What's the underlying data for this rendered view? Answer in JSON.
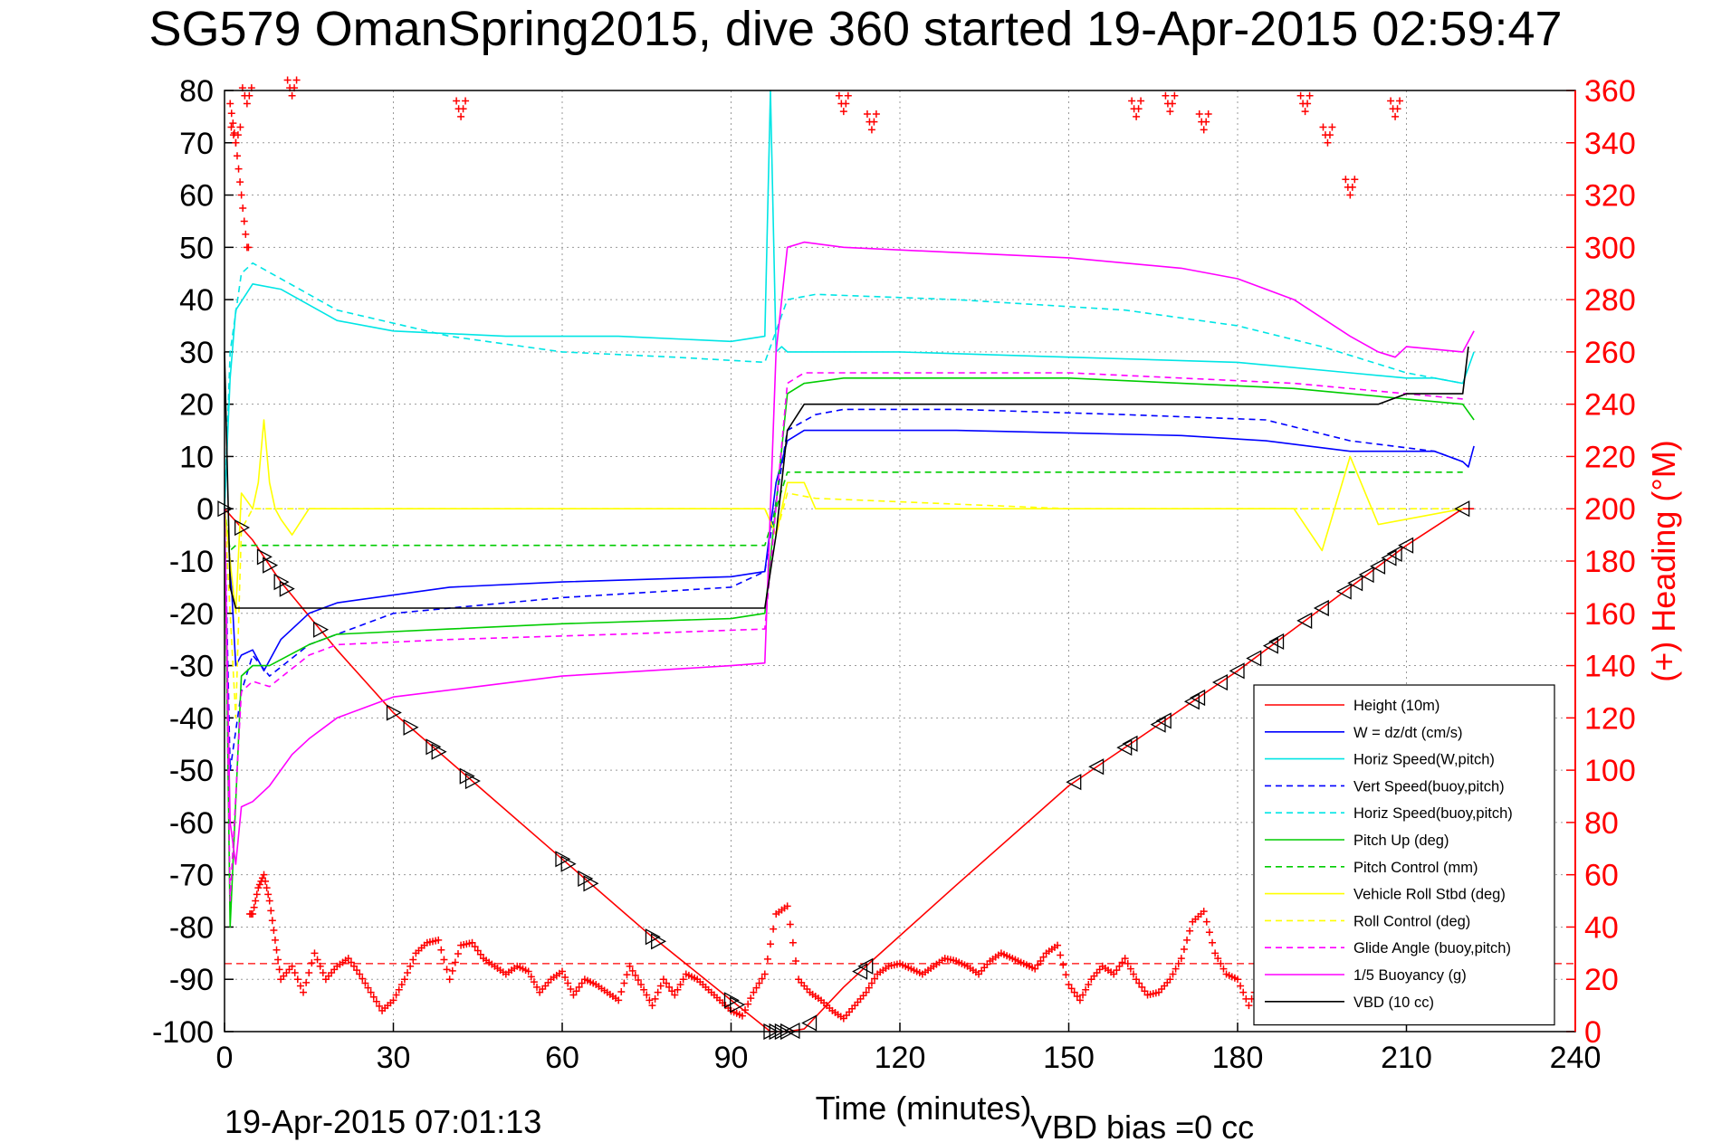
{
  "chart_data": {
    "type": "line",
    "title": "SG579 OmanSpring2015, dive 360 started 19-Apr-2015 02:59:47",
    "xlabel": "Time (minutes)",
    "ylabel_right": "(+) Heading (°M)",
    "xlim": [
      0,
      240
    ],
    "ylim": [
      -100,
      80
    ],
    "ylim_right": [
      0,
      360
    ],
    "x_ticks": [
      "0",
      "30",
      "60",
      "90",
      "120",
      "150",
      "180",
      "210",
      "240"
    ],
    "y_ticks": [
      "-100",
      "-90",
      "-80",
      "-70",
      "-60",
      "-50",
      "-40",
      "-30",
      "-20",
      "-10",
      "0",
      "10",
      "20",
      "30",
      "40",
      "50",
      "60",
      "70",
      "80"
    ],
    "y_ticks_right": [
      "0",
      "20",
      "40",
      "60",
      "80",
      "100",
      "120",
      "140",
      "160",
      "180",
      "200",
      "220",
      "240",
      "260",
      "280",
      "300",
      "320",
      "340",
      "360"
    ],
    "grid": true,
    "legend_position": "bottom-right",
    "footer_left": "19-Apr-2015 07:01:13",
    "footer_right": "VBD bias =0 cc",
    "series": [
      {
        "name": "Height (10m)",
        "color": "#ff0000",
        "style": "solid",
        "x": [
          0,
          5,
          10,
          20,
          30,
          45,
          60,
          75,
          90,
          97,
          98,
          100,
          103,
          110,
          115,
          130,
          150,
          165,
          180,
          195,
          210,
          220,
          222
        ],
        "y": [
          0,
          -6,
          -14,
          -27,
          -39,
          -53,
          -67,
          -81,
          -94,
          -100,
          -100,
          -100,
          -99.5,
          -91.5,
          -86.5,
          -72,
          -53,
          -42,
          -31,
          -19,
          -7,
          0,
          0
        ]
      },
      {
        "name": "W = dz/dt (cm/s)",
        "color": "#0000ff",
        "style": "solid",
        "x": [
          0,
          1,
          2,
          3,
          5,
          7,
          10,
          15,
          20,
          40,
          60,
          90,
          96,
          98,
          100,
          103,
          110,
          130,
          150,
          170,
          185,
          200,
          215,
          220,
          221,
          222
        ],
        "y": [
          0,
          -10,
          -30,
          -28,
          -27,
          -31,
          -25,
          -20,
          -18,
          -15,
          -14,
          -13,
          -12,
          5,
          13,
          15,
          15,
          15,
          14.5,
          14,
          13,
          11,
          11,
          9,
          8,
          12
        ]
      },
      {
        "name": "Horiz Speed(W,pitch)",
        "color": "#00e5e5",
        "style": "solid",
        "x": [
          0,
          1,
          2,
          5,
          10,
          20,
          30,
          50,
          70,
          90,
          96,
          97,
          98,
          99,
          100,
          105,
          120,
          150,
          180,
          200,
          210,
          215,
          220,
          222
        ],
        "y": [
          0,
          25,
          38,
          43,
          42,
          36,
          34,
          33,
          33,
          32,
          33,
          80,
          30,
          31,
          30,
          30,
          30,
          29,
          28,
          26,
          25,
          25,
          24,
          30
        ]
      },
      {
        "name": "Vert Speed(buoy,pitch)",
        "color": "#0000ff",
        "style": "dashed",
        "x": [
          0,
          1,
          3,
          5,
          8,
          15,
          30,
          60,
          90,
          96,
          100,
          105,
          110,
          130,
          160,
          185,
          200,
          215,
          220
        ],
        "y": [
          0,
          -50,
          -35,
          -28,
          -32,
          -26,
          -20,
          -17,
          -15,
          -12,
          15,
          18,
          19,
          19,
          18,
          17,
          13,
          11,
          9
        ]
      },
      {
        "name": "Horiz Speed(buoy,pitch)",
        "color": "#00e5e5",
        "style": "dashed",
        "x": [
          0,
          1,
          3,
          5,
          10,
          20,
          40,
          60,
          80,
          96,
          100,
          105,
          130,
          160,
          180,
          195,
          210,
          220
        ],
        "y": [
          0,
          30,
          45,
          47,
          44,
          38,
          33,
          30,
          29,
          28,
          40,
          41,
          40,
          38,
          35,
          31,
          26,
          24
        ]
      },
      {
        "name": "Pitch Up (deg)",
        "color": "#00cc00",
        "style": "solid",
        "x": [
          0,
          1,
          3,
          5,
          8,
          15,
          20,
          40,
          60,
          90,
          96,
          100,
          103,
          110,
          150,
          190,
          210,
          220,
          222
        ],
        "y": [
          0,
          -80,
          -32,
          -30,
          -30,
          -26,
          -24,
          -23,
          -22,
          -21,
          -20,
          22,
          24,
          25,
          25,
          23,
          21,
          20,
          17
        ]
      },
      {
        "name": "Pitch Control (mm)",
        "color": "#00cc00",
        "style": "dashed",
        "x": [
          0,
          1,
          2,
          10,
          40,
          70,
          96,
          98,
          100,
          110,
          150,
          200,
          220
        ],
        "y": [
          0,
          -8,
          -7,
          -7,
          -7,
          -7,
          -7,
          0,
          7,
          7,
          7,
          7,
          7
        ]
      },
      {
        "name": "Vehicle Roll Stbd (deg)",
        "color": "#ffff00",
        "style": "solid",
        "x": [
          0,
          2,
          3,
          5,
          6,
          7,
          8,
          9,
          10,
          12,
          15,
          20,
          30,
          40,
          60,
          80,
          96,
          98,
          100,
          103,
          105,
          120,
          150,
          170,
          190,
          195,
          200,
          205,
          220
        ],
        "y": [
          0,
          -20,
          3,
          0,
          5,
          17,
          5,
          0,
          -2,
          -5,
          0,
          0,
          0,
          0,
          0,
          0,
          0,
          -5,
          5,
          5,
          0,
          0,
          0,
          0,
          0,
          -8,
          10,
          -3,
          0
        ]
      },
      {
        "name": "Roll Control (deg)",
        "color": "#ffff00",
        "style": "dashed",
        "x": [
          0,
          2,
          3,
          5,
          40,
          96,
          98,
          100,
          105,
          150,
          200,
          220
        ],
        "y": [
          0,
          -40,
          -4,
          0,
          0,
          0,
          -5,
          3,
          2,
          0,
          0,
          0
        ]
      },
      {
        "name": "Glide Angle (buoy,pitch)",
        "color": "#ff00ff",
        "style": "dashed",
        "x": [
          0,
          1,
          3,
          5,
          8,
          15,
          20,
          40,
          70,
          96,
          100,
          103,
          110,
          150,
          190,
          210,
          220
        ],
        "y": [
          0,
          -75,
          -35,
          -33,
          -34,
          -28,
          -26,
          -25,
          -24,
          -23,
          24,
          26,
          26,
          26,
          24,
          22,
          21
        ]
      },
      {
        "name": "1/5 Buoyancy (g)",
        "color": "#ff00ff",
        "style": "solid",
        "x": [
          0,
          1,
          2,
          3,
          5,
          8,
          12,
          15,
          20,
          25,
          30,
          45,
          60,
          75,
          90,
          96,
          98,
          100,
          103,
          110,
          130,
          150,
          170,
          180,
          190,
          200,
          205,
          208,
          210,
          220,
          222
        ],
        "y": [
          0,
          -60,
          -68,
          -57,
          -56,
          -53,
          -47,
          -44,
          -40,
          -38,
          -36,
          -34,
          -32,
          -31,
          -30,
          -29.5,
          30,
          50,
          51,
          50,
          49,
          48,
          46,
          44,
          40,
          33,
          30,
          29,
          31,
          30,
          34
        ]
      },
      {
        "name": "VBD (10 cc)",
        "color": "#000000",
        "style": "solid",
        "x": [
          0,
          1,
          2,
          50,
          96,
          98,
          100,
          103,
          130,
          205,
          210,
          220,
          221
        ],
        "y": [
          30,
          -15,
          -19,
          -19,
          -19,
          -5,
          15,
          20,
          20,
          20,
          22,
          22,
          31
        ]
      }
    ],
    "heading": {
      "name": "Heading",
      "color": "#ff0000",
      "marker": "+",
      "axis": "right",
      "reference_line": 26,
      "x": [
        1,
        2,
        3,
        4,
        5,
        6,
        7,
        8,
        9,
        10,
        12,
        14,
        16,
        18,
        20,
        22,
        24,
        26,
        28,
        30,
        32,
        34,
        36,
        38,
        40,
        42,
        44,
        46,
        48,
        50,
        52,
        54,
        56,
        58,
        60,
        62,
        64,
        66,
        68,
        70,
        72,
        74,
        76,
        78,
        80,
        82,
        84,
        86,
        88,
        90,
        92,
        94,
        96,
        98,
        100,
        102,
        104,
        106,
        108,
        110,
        112,
        114,
        116,
        118,
        120,
        122,
        124,
        126,
        128,
        130,
        132,
        134,
        136,
        138,
        140,
        142,
        144,
        146,
        148,
        150,
        152,
        154,
        156,
        158,
        160,
        162,
        164,
        166,
        168,
        170,
        172,
        174,
        176,
        178,
        180,
        182,
        184,
        186,
        188,
        190,
        192,
        194,
        196,
        198,
        200,
        202,
        204,
        206,
        208,
        210,
        212,
        214,
        216,
        218,
        220
      ],
      "y": [
        355,
        340,
        320,
        300,
        45,
        55,
        60,
        50,
        35,
        20,
        25,
        15,
        30,
        20,
        25,
        28,
        22,
        15,
        8,
        12,
        20,
        30,
        34,
        35,
        20,
        33,
        34,
        28,
        25,
        22,
        25,
        23,
        15,
        20,
        23,
        14,
        20,
        18,
        15,
        12,
        25,
        18,
        10,
        20,
        14,
        22,
        20,
        16,
        12,
        8,
        6,
        15,
        22,
        45,
        48,
        20,
        15,
        12,
        8,
        5,
        10,
        15,
        22,
        25,
        26,
        24,
        22,
        25,
        28,
        27,
        25,
        22,
        27,
        30,
        28,
        26,
        24,
        30,
        33,
        18,
        12,
        20,
        25,
        22,
        28,
        20,
        14,
        15,
        20,
        28,
        42,
        46,
        30,
        22,
        20,
        10,
        20,
        22,
        15,
        25,
        20,
        22,
        15,
        22,
        20,
        26,
        22,
        30,
        32,
        25,
        28,
        15,
        22,
        22,
        20
      ]
    },
    "heading_top_clusters": [
      [
        2,
        340
      ],
      [
        4,
        355
      ],
      [
        12,
        358
      ],
      [
        42,
        350
      ],
      [
        110,
        352
      ],
      [
        115,
        345
      ],
      [
        162,
        350
      ],
      [
        168,
        352
      ],
      [
        174,
        345
      ],
      [
        192,
        352
      ],
      [
        196,
        340
      ],
      [
        200,
        320
      ],
      [
        208,
        350
      ]
    ],
    "markers": {
      "down_series": "Height (10m)",
      "down_x": [
        0,
        3,
        7,
        8,
        10,
        11,
        17,
        30,
        33,
        37,
        38,
        43,
        44,
        60,
        61,
        64,
        65,
        76,
        77,
        90,
        91,
        97,
        98,
        99,
        100
      ],
      "up_x": [
        101,
        104,
        113,
        114,
        151,
        155,
        160,
        161,
        166,
        167,
        172,
        173,
        177,
        180,
        183,
        186,
        187,
        192,
        195,
        199,
        201,
        203,
        205,
        207,
        208,
        210,
        220
      ]
    }
  }
}
